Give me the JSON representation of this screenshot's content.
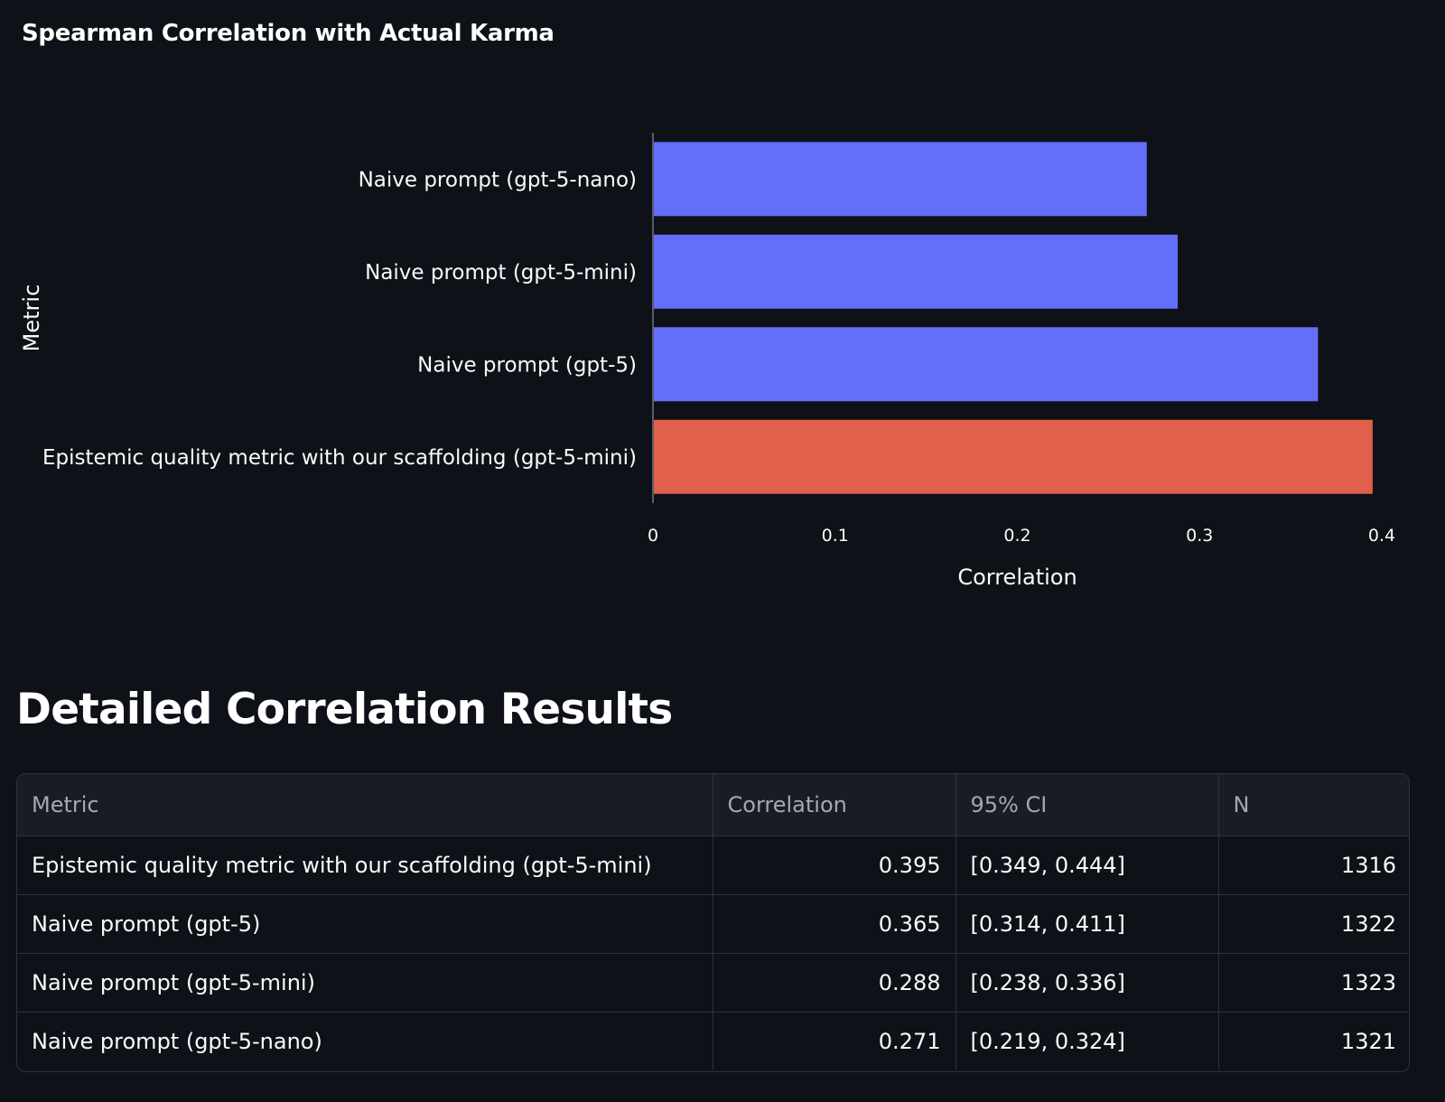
{
  "chart_data": {
    "type": "bar",
    "orientation": "horizontal",
    "title": "Spearman Correlation with Actual Karma",
    "xlabel": "Correlation",
    "ylabel": "Metric",
    "xlim": [
      0,
      0.4
    ],
    "xticks": [
      "0",
      "0.1",
      "0.2",
      "0.3",
      "0.4"
    ],
    "categories": [
      "Naive prompt (gpt-5-nano)",
      "Naive prompt (gpt-5-mini)",
      "Naive prompt (gpt-5)",
      "Epistemic quality metric with our scaffolding (gpt-5-mini)"
    ],
    "values": [
      0.271,
      0.288,
      0.365,
      0.395
    ],
    "colors": [
      "#636efa",
      "#636efa",
      "#636efa",
      "#e0604b"
    ],
    "grid": false,
    "legend": false
  },
  "section": {
    "title": "Detailed Correlation Results"
  },
  "table": {
    "headers": [
      "Metric",
      "Correlation",
      "95% CI",
      "N"
    ],
    "rows": [
      [
        "Epistemic quality metric with our scaffolding (gpt-5-mini)",
        "0.395",
        "[0.349, 0.444]",
        "1316"
      ],
      [
        "Naive prompt (gpt-5)",
        "0.365",
        "[0.314, 0.411]",
        "1322"
      ],
      [
        "Naive prompt (gpt-5-mini)",
        "0.288",
        "[0.238, 0.336]",
        "1323"
      ],
      [
        "Naive prompt (gpt-5-nano)",
        "0.271",
        "[0.219, 0.324]",
        "1321"
      ]
    ]
  }
}
